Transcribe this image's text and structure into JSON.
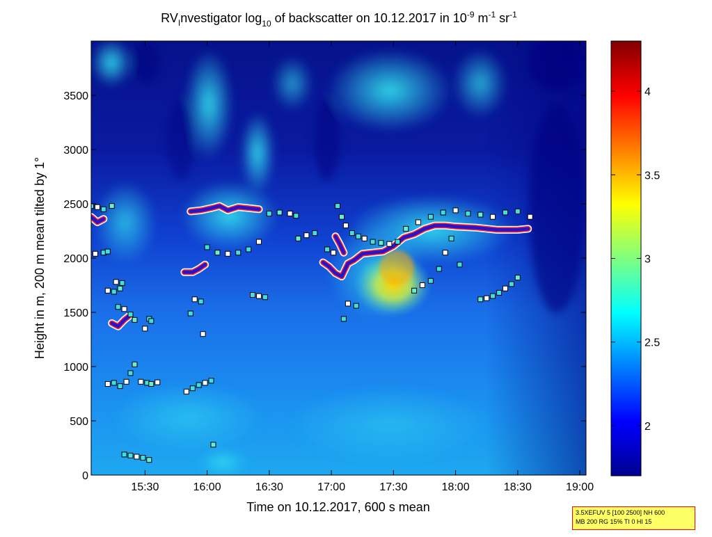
{
  "chart_data": {
    "type": "heatmap",
    "title": {
      "part1": "RV",
      "part1_sub": "I",
      "part2": "nvestigator log",
      "part2_sub": "10",
      "part3": " of backscatter on 10.12.2017 in 10",
      "part3_sup": "-9",
      "part4": " m",
      "part4_sup": "-1",
      "part5": " sr",
      "part5_sup": "-1"
    },
    "xlabel": "Time on 10.12.2017, 600 s mean",
    "ylabel": "Height in m, 200 m mean tilted by 1°",
    "x_ticks": [
      "15:30",
      "16:00",
      "16:30",
      "17:00",
      "17:30",
      "18:00",
      "18:30",
      "19:00"
    ],
    "y_ticks": [
      "0",
      "500",
      "1000",
      "1500",
      "2000",
      "2500",
      "3000",
      "3500"
    ],
    "colorbar_ticks": [
      "2",
      "2.5",
      "3",
      "3.5",
      "4"
    ],
    "colorbar_range": [
      1.7,
      4.3
    ],
    "colormap": "jet",
    "xlim_minutes": [
      904,
      1143
    ],
    "ylim": [
      0,
      4000
    ],
    "boundary_layer_line": [
      {
        "segment": "A",
        "points": [
          [
            904,
            2380
          ],
          [
            907,
            2330
          ],
          [
            910,
            2360
          ]
        ]
      },
      {
        "segment": "B",
        "points": [
          [
            914,
            1400
          ],
          [
            917,
            1370
          ],
          [
            920,
            1430
          ],
          [
            922,
            1460
          ]
        ]
      },
      {
        "segment": "C",
        "points": [
          [
            949,
            1870
          ],
          [
            953,
            1870
          ],
          [
            956,
            1900
          ],
          [
            959,
            1940
          ]
        ]
      },
      {
        "segment": "D",
        "points": [
          [
            952,
            2430
          ],
          [
            957,
            2440
          ],
          [
            962,
            2460
          ],
          [
            966,
            2480
          ],
          [
            970,
            2440
          ],
          [
            975,
            2470
          ],
          [
            980,
            2460
          ],
          [
            985,
            2450
          ]
        ]
      },
      {
        "segment": "E",
        "points": [
          [
            1016,
            1960
          ],
          [
            1019,
            1920
          ],
          [
            1022,
            1860
          ],
          [
            1025,
            1830
          ],
          [
            1028,
            1950
          ],
          [
            1031,
            1980
          ],
          [
            1035,
            2040
          ],
          [
            1040,
            2050
          ],
          [
            1045,
            2060
          ],
          [
            1050,
            2110
          ],
          [
            1055,
            2190
          ],
          [
            1060,
            2220
          ],
          [
            1065,
            2270
          ],
          [
            1070,
            2300
          ],
          [
            1075,
            2300
          ],
          [
            1080,
            2290
          ],
          [
            1090,
            2280
          ],
          [
            1100,
            2260
          ],
          [
            1110,
            2260
          ],
          [
            1115,
            2270
          ]
        ]
      },
      {
        "segment": "F",
        "points": [
          [
            1022,
            2200
          ],
          [
            1024,
            2130
          ],
          [
            1026,
            2050
          ]
        ]
      }
    ],
    "marker_clusters": [
      {
        "name": "c1",
        "points": [
          [
            904,
            2480
          ],
          [
            907,
            2470
          ],
          [
            910,
            2450
          ],
          [
            914,
            2480
          ]
        ]
      },
      {
        "name": "c2",
        "points": [
          [
            906,
            2040
          ],
          [
            910,
            2050
          ],
          [
            912,
            2060
          ]
        ]
      },
      {
        "name": "c3",
        "points": [
          [
            912,
            1700
          ],
          [
            915,
            1690
          ],
          [
            918,
            1720
          ],
          [
            916,
            1780
          ],
          [
            919,
            1770
          ],
          [
            917,
            1550
          ],
          [
            920,
            1530
          ],
          [
            923,
            1480
          ],
          [
            925,
            1430
          ]
        ]
      },
      {
        "name": "c4",
        "points": [
          [
            912,
            840
          ],
          [
            915,
            850
          ],
          [
            918,
            820
          ],
          [
            921,
            860
          ],
          [
            923,
            940
          ],
          [
            925,
            1020
          ],
          [
            930,
            1350
          ],
          [
            932,
            1440
          ],
          [
            933,
            1420
          ]
        ]
      },
      {
        "name": "c5",
        "points": [
          [
            928,
            860
          ],
          [
            931,
            850
          ],
          [
            933,
            840
          ],
          [
            936,
            855
          ],
          [
            920,
            190
          ],
          [
            923,
            180
          ],
          [
            926,
            170
          ],
          [
            929,
            160
          ],
          [
            932,
            140
          ]
        ]
      },
      {
        "name": "c6",
        "points": [
          [
            950,
            770
          ],
          [
            953,
            800
          ],
          [
            956,
            830
          ],
          [
            959,
            850
          ],
          [
            962,
            870
          ],
          [
            963,
            280
          ]
        ]
      },
      {
        "name": "c7",
        "points": [
          [
            954,
            1620
          ],
          [
            957,
            1600
          ],
          [
            952,
            1490
          ],
          [
            958,
            1300
          ]
        ]
      },
      {
        "name": "c8",
        "points": [
          [
            960,
            2100
          ],
          [
            965,
            2050
          ],
          [
            970,
            2040
          ],
          [
            975,
            2050
          ],
          [
            980,
            2080
          ],
          [
            985,
            2150
          ],
          [
            990,
            2410
          ],
          [
            995,
            2420
          ],
          [
            1000,
            2410
          ],
          [
            1003,
            2390
          ]
        ]
      },
      {
        "name": "c9",
        "points": [
          [
            982,
            1660
          ],
          [
            985,
            1650
          ],
          [
            988,
            1640
          ],
          [
            1004,
            2180
          ],
          [
            1008,
            2210
          ],
          [
            1012,
            2230
          ]
        ]
      },
      {
        "name": "c10",
        "points": [
          [
            1018,
            2080
          ],
          [
            1021,
            2050
          ],
          [
            1023,
            2480
          ],
          [
            1025,
            2380
          ],
          [
            1027,
            2300
          ],
          [
            1030,
            2230
          ],
          [
            1033,
            2200
          ],
          [
            1036,
            2180
          ],
          [
            1040,
            2150
          ],
          [
            1044,
            2140
          ],
          [
            1048,
            2130
          ],
          [
            1052,
            2150
          ]
        ]
      },
      {
        "name": "c11",
        "points": [
          [
            1026,
            1440
          ],
          [
            1028,
            1580
          ],
          [
            1032,
            1560
          ],
          [
            1060,
            1700
          ],
          [
            1064,
            1750
          ],
          [
            1068,
            1790
          ],
          [
            1072,
            1900
          ],
          [
            1075,
            2050
          ],
          [
            1078,
            2180
          ]
        ]
      },
      {
        "name": "c12",
        "points": [
          [
            1056,
            2270
          ],
          [
            1062,
            2330
          ],
          [
            1068,
            2380
          ],
          [
            1074,
            2420
          ],
          [
            1080,
            2440
          ],
          [
            1086,
            2410
          ],
          [
            1092,
            2400
          ],
          [
            1098,
            2380
          ],
          [
            1104,
            2420
          ],
          [
            1110,
            2430
          ],
          [
            1116,
            2380
          ]
        ]
      },
      {
        "name": "c13",
        "points": [
          [
            1082,
            1940
          ],
          [
            1092,
            1620
          ],
          [
            1095,
            1630
          ],
          [
            1098,
            1650
          ],
          [
            1101,
            1680
          ],
          [
            1104,
            1720
          ],
          [
            1107,
            1760
          ],
          [
            1110,
            1820
          ]
        ]
      }
    ]
  },
  "info_box": {
    "line1": "3.5XEFUV 5 [100 2500] NH 600",
    "line2": "MB 200 RG 15% TI 0 HI 15"
  }
}
